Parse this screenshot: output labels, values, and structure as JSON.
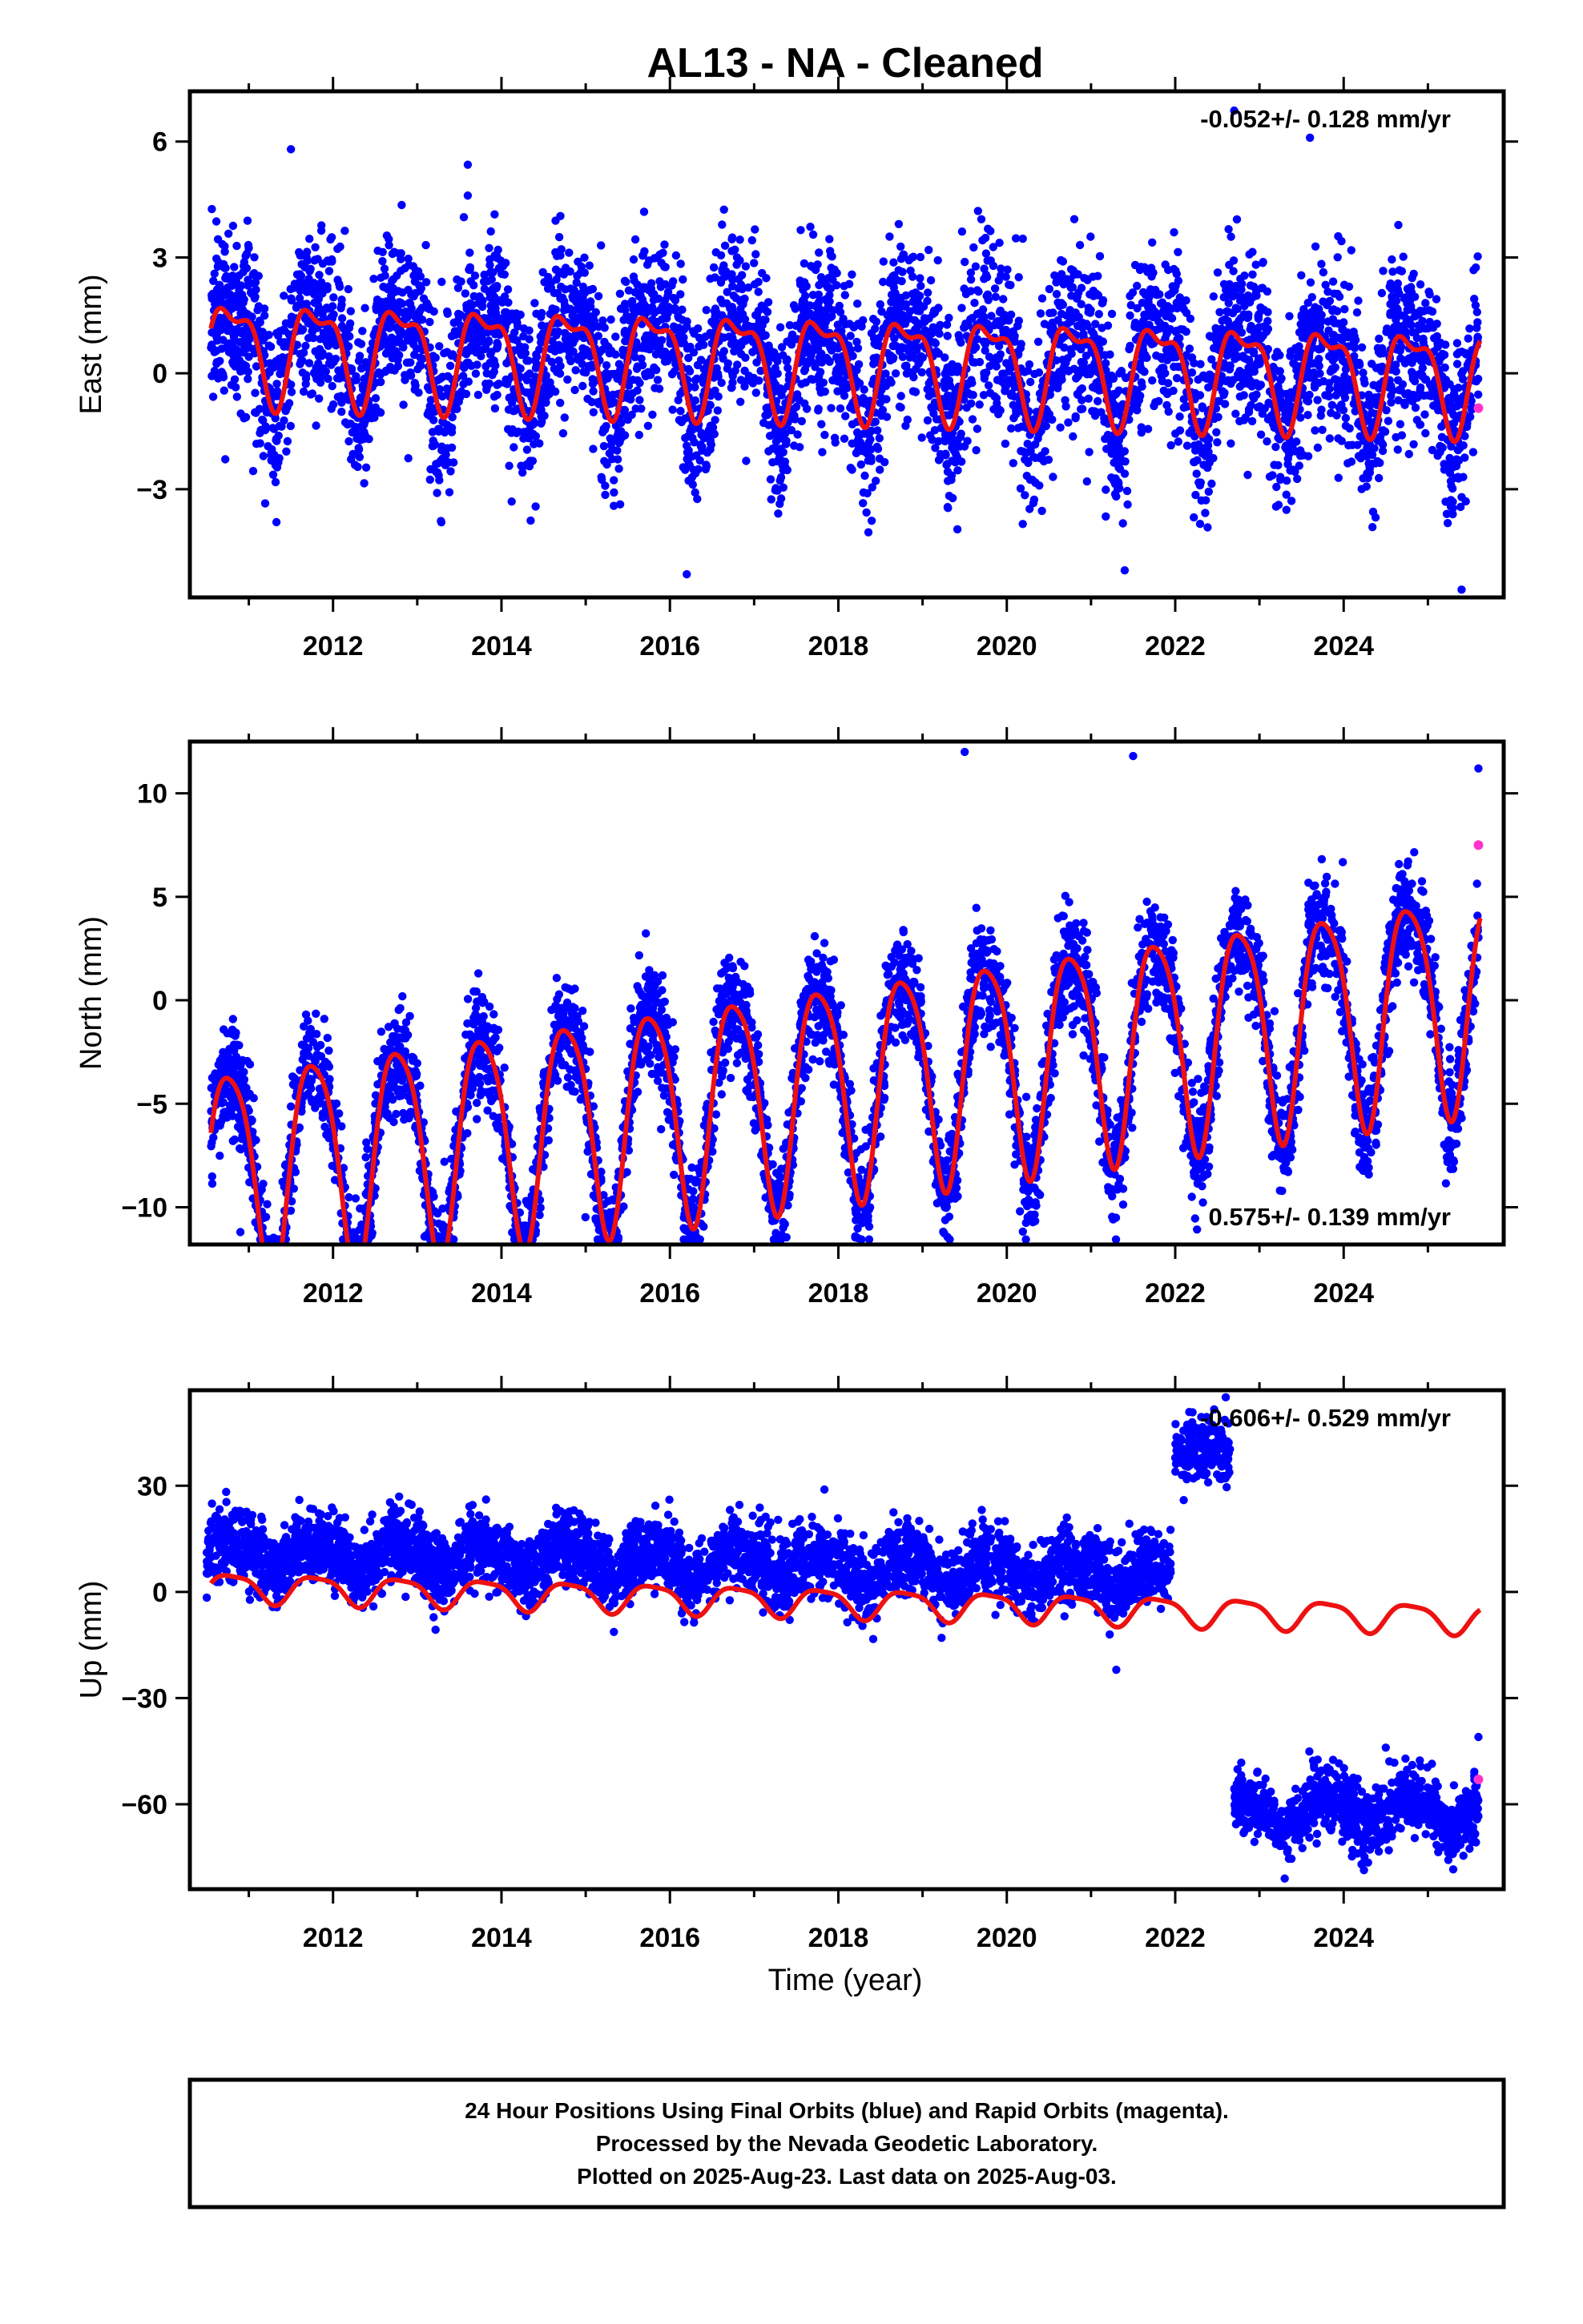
{
  "figure": {
    "title": "AL13  - NA - Cleaned",
    "xlabel": "Time (year)",
    "footer_lines": [
      "24 Hour Positions Using Final Orbits (blue) and Rapid Orbits (magenta).",
      "Processed by the Nevada Geodetic Laboratory.",
      "Plotted on 2025-Aug-23. Last data on 2025-Aug-03."
    ],
    "colors": {
      "final_orbits": "#0000ff",
      "rapid_orbits": "#ff33cc",
      "model": "#ee1111",
      "frame": "#000000"
    }
  },
  "chart_data": [
    {
      "type": "scatter",
      "ylabel": "East (mm)",
      "rate_label": "-0.052+/- 0.128 mm/yr",
      "rate_position": "top-right",
      "xlim": [
        2010.3,
        2025.9
      ],
      "ylim": [
        -5.8,
        7.3
      ],
      "xticks": [
        "2012",
        "2014",
        "2016",
        "2018",
        "2020",
        "2022",
        "2024"
      ],
      "yticks": [
        "-3",
        "0",
        "3",
        "6"
      ],
      "series": [
        {
          "style": "points",
          "color": "#0000ff",
          "model": {
            "offset": 0.3,
            "rate": -0.052,
            "annual": 1.2,
            "phase": 0.55,
            "semiannual": 0.5,
            "noise": 1.1
          },
          "x": [
            2011.5,
            2013.6,
            2013.6,
            2022.7,
            2023.6,
            2016.2,
            2021.4,
            2025.4
          ],
          "y": [
            5.8,
            5.4,
            4.6,
            6.8,
            6.1,
            -5.2,
            -5.1,
            -5.6
          ]
        },
        {
          "style": "points",
          "color": "#ff33cc",
          "x": [
            2025.6
          ],
          "y": [
            -0.9
          ]
        },
        {
          "style": "line",
          "color": "#ee1111",
          "model": {
            "offset": 0.3,
            "rate": -0.052,
            "annual": 1.2,
            "phase": 0.55,
            "semiannual": 0.5
          }
        }
      ]
    },
    {
      "type": "scatter",
      "ylabel": "North (mm)",
      "rate_label": "0.575+/- 0.139 mm/yr",
      "rate_position": "bottom-right",
      "xlim": [
        2010.3,
        2025.9
      ],
      "ylim": [
        -11.8,
        12.5
      ],
      "xticks": [
        "2012",
        "2014",
        "2016",
        "2018",
        "2020",
        "2022",
        "2024"
      ],
      "yticks": [
        "-10",
        "-5",
        "0",
        "5",
        "10"
      ],
      "series": [
        {
          "style": "points",
          "color": "#0000ff",
          "model": {
            "offset": -4.0,
            "rate": 0.575,
            "annual": 5.2,
            "phase": 0.52,
            "semiannual": 0.9,
            "noise": 1.3
          },
          "x": [
            2019.5,
            2021.5,
            2010.9,
            2025.6
          ],
          "y": [
            12.0,
            11.8,
            -11.2,
            11.2
          ]
        },
        {
          "style": "points",
          "color": "#ff33cc",
          "x": [
            2025.6
          ],
          "y": [
            7.5
          ]
        },
        {
          "style": "line",
          "color": "#ee1111",
          "model": {
            "offset": -4.0,
            "rate": 0.575,
            "annual": 5.2,
            "phase": 0.52,
            "semiannual": 0.9
          }
        }
      ]
    },
    {
      "type": "scatter",
      "ylabel": "Up (mm)",
      "rate_label": "-0.606+/- 0.529 mm/yr",
      "rate_position": "top-right",
      "xlim": [
        2010.3,
        2025.9
      ],
      "ylim": [
        -84,
        57
      ],
      "xticks": [
        "2012",
        "2014",
        "2016",
        "2018",
        "2020",
        "2022",
        "2024"
      ],
      "yticks": [
        "-60",
        "-30",
        "0",
        "30"
      ],
      "series": [
        {
          "style": "points",
          "color": "#0000ff",
          "segment": [
            2010.5,
            2021.95
          ],
          "model": {
            "offset": 7.0,
            "rate": -0.606,
            "annual": 4.0,
            "phase": 0.55,
            "semiannual": 1.0,
            "noise": 5.0
          },
          "x": [
            2011.6,
            2012.9,
            2021.3
          ],
          "y": [
            26,
            25,
            -22
          ]
        },
        {
          "style": "points",
          "color": "#0000ff",
          "segment": [
            2022.0,
            2022.65
          ],
          "model": {
            "offset": 40.0,
            "rate": 0.0,
            "annual": 0.0,
            "phase": 0.5,
            "semiannual": 0.0,
            "noise": 4.5
          },
          "x": [
            2022.6
          ],
          "y": [
            55
          ]
        },
        {
          "style": "points",
          "color": "#0000ff",
          "segment": [
            2022.7,
            2025.6
          ],
          "model": {
            "offset": -62.0,
            "rate": 0.0,
            "annual": 4.0,
            "phase": 0.55,
            "semiannual": 1.0,
            "noise": 4.5
          },
          "x": [
            2023.3,
            2024.5,
            2025.6
          ],
          "y": [
            -81,
            -44,
            -41
          ]
        },
        {
          "style": "points",
          "color": "#ff33cc",
          "x": [
            2025.6
          ],
          "y": [
            -53
          ]
        },
        {
          "style": "line",
          "color": "#ee1111",
          "model": {
            "offset": -3.0,
            "rate": -0.606,
            "annual": 4.0,
            "phase": 0.55,
            "semiannual": 1.0
          }
        }
      ]
    }
  ]
}
